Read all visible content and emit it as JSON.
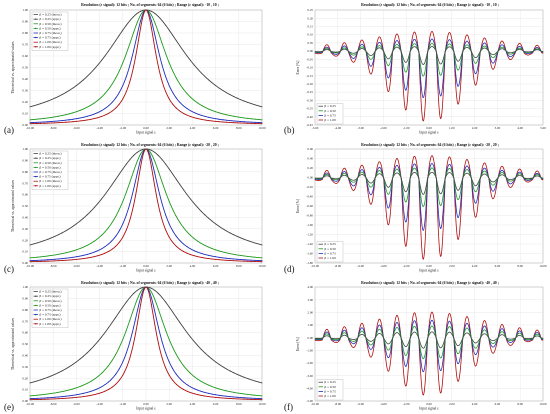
{
  "figure": {
    "panels": [
      {
        "letter": "(a)",
        "title": "Resolution (ε signal): 12 bits ; No. of segments: 64 (6 bits) ; Range (ε signal): -10 , 10 ;"
      },
      {
        "letter": "(b)",
        "title": "Resolution (ε signal): 12 bits ; No. of segments: 64 (6 bits) ; Range (ε signal): -10 , 10 ;"
      },
      {
        "letter": "(c)",
        "title": "Resolution (ε signal): 12 bits ; No. of segments: 64 (6 bits) ; Range (ε signal): -20 , 20 ;"
      },
      {
        "letter": "(d)",
        "title": "Resolution (ε signal): 12 bits ; No. of segments: 64 (6 bits) ; Range (ε signal): -20 , 20 ;"
      },
      {
        "letter": "(e)",
        "title": "Resolution (ε signal): 12 bits ; No. of segments: 64 (6 bits) ; Range (ε signal): -40 , 40 ;"
      },
      {
        "letter": "(f)",
        "title": "Resolution (ε signal): 12 bits ; No. of segments: 64 (6 bits) ; Range (ε signal): -40 , 40 ;"
      }
    ]
  },
  "colors": {
    "b025": "#444444",
    "b050": "#1f9a1f",
    "b075": "#1f2fbf",
    "b100": "#b01010"
  },
  "chart_data": [
    {
      "type": "line",
      "title": "Resolution (ε signal): 12 bits ; No. of segments: 64 (6 bits) ; Range (ε signal): -10 , 10 ;",
      "xlabel": "Input signal ε",
      "ylabel": "Theoretical vs. approximated values",
      "xlim": [
        -10,
        10
      ],
      "ylim": [
        0,
        1
      ],
      "xticks": [
        "-10.00",
        "-8.00",
        "-6.00",
        "-4.00",
        "-2.00",
        "0.00",
        "2.00",
        "4.00",
        "6.00",
        "8.00",
        "10.00"
      ],
      "yticks": [
        "0.00",
        "0.10",
        "0.20",
        "0.30",
        "0.40",
        "0.50",
        "0.60",
        "0.70",
        "0.80",
        "0.90",
        "1.00"
      ],
      "legend": [
        "β = 0.25 (theor.)",
        "β = 0.25 (appr.)",
        "β = 0.50 (theor.)",
        "β = 0.50 (appr.)",
        "β = 0.75 (theor.)",
        "β = 0.75 (appr.)",
        "β = 1.00 (theor.)",
        "β = 1.00 (appr.)"
      ],
      "legend_position": "top-left",
      "series": [
        {
          "name": "β = 0.25",
          "beta": 0.25,
          "color": "#444444"
        },
        {
          "name": "β = 0.50",
          "beta": 0.5,
          "color": "#1f9a1f"
        },
        {
          "name": "β = 0.75",
          "beta": 0.75,
          "color": "#1f2fbf"
        },
        {
          "name": "β = 1.00",
          "beta": 1.0,
          "color": "#b01010"
        }
      ]
    },
    {
      "type": "line",
      "title": "Resolution (ε signal): 12 bits ; No. of segments: 64 (6 bits) ; Range (ε signal): -10 , 10 ;",
      "xlabel": "Input signal ε",
      "ylabel": "Error [%]",
      "xlim": [
        -5,
        5
      ],
      "ylim": [
        -0.45,
        0.25
      ],
      "xticks": [
        "-5.00",
        "-4.00",
        "-3.00",
        "-2.00",
        "-1.00",
        "0.00",
        "1.00",
        "2.00",
        "3.00",
        "4.00",
        "5.00"
      ],
      "yticks": [
        "0.25",
        "0.20",
        "0.15",
        "0.10",
        "0.05",
        "0.00",
        "-0.05",
        "-0.10",
        "-0.15",
        "-0.20",
        "-0.25",
        "-0.30",
        "-0.35",
        "-0.40",
        "-0.45"
      ],
      "legend": [
        "β = 0.25",
        "β = 0.50",
        "β = 0.75",
        "β = 1.00"
      ],
      "legend_position": "bottom-left",
      "series": [
        {
          "name": "β = 0.25",
          "amplitude_pos": 0.03,
          "amplitude_neg": 0.08,
          "color": "#444444"
        },
        {
          "name": "β = 0.50",
          "amplitude_pos": 0.05,
          "amplitude_neg": 0.15,
          "color": "#1f9a1f"
        },
        {
          "name": "β = 0.75",
          "amplitude_pos": 0.08,
          "amplitude_neg": 0.28,
          "color": "#1f2fbf"
        },
        {
          "name": "β = 1.00",
          "amplitude_pos": 0.13,
          "amplitude_neg": 0.42,
          "color": "#b01010"
        }
      ]
    },
    {
      "type": "line",
      "title": "Resolution (ε signal): 12 bits ; No. of segments: 64 (6 bits) ; Range (ε signal): -20 , 20 ;",
      "xlabel": "Input signal ε",
      "ylabel": "Theoretical vs. approximated values",
      "xlim": [
        -10,
        10
      ],
      "ylim": [
        0,
        1
      ],
      "xticks": [
        "-10.00",
        "-8.00",
        "-6.00",
        "-4.00",
        "-2.00",
        "0.00",
        "2.00",
        "4.00",
        "6.00",
        "8.00",
        "10.00"
      ],
      "yticks": [
        "0.00",
        "0.10",
        "0.20",
        "0.30",
        "0.40",
        "0.50",
        "0.60",
        "0.70",
        "0.80",
        "0.90",
        "1.00"
      ],
      "legend": [
        "β = 0.25 (theor.)",
        "β = 0.25 (appr.)",
        "β = 0.50 (theor.)",
        "β = 0.50 (appr.)",
        "β = 0.75 (theor.)",
        "β = 0.75 (appr.)",
        "β = 1.00 (theor.)",
        "β = 1.00 (appr.)"
      ],
      "legend_position": "top-left",
      "series": [
        {
          "name": "β = 0.25",
          "beta": 0.25,
          "color": "#444444"
        },
        {
          "name": "β = 0.50",
          "beta": 0.5,
          "color": "#1f9a1f"
        },
        {
          "name": "β = 0.75",
          "beta": 0.75,
          "color": "#1f2fbf"
        },
        {
          "name": "β = 1.00",
          "beta": 1.0,
          "color": "#b01010"
        }
      ]
    },
    {
      "type": "line",
      "title": "Resolution (ε signal): 12 bits ; No. of segments: 64 (6 bits) ; Range (ε signal): -20 , 20 ;",
      "xlabel": "Input signal ε",
      "ylabel": "Error [%]",
      "xlim": [
        -10,
        10
      ],
      "ylim": [
        -1.8,
        0.6
      ],
      "xticks": [
        "-10.00",
        "-8.00",
        "-6.00",
        "-4.00",
        "-2.00",
        "0.00",
        "2.00",
        "4.00",
        "6.00",
        "8.00",
        "10.00"
      ],
      "yticks": [
        "0.60",
        "0.40",
        "0.20",
        "0.00",
        "-0.20",
        "-0.40",
        "-0.60",
        "-0.80",
        "-1.00",
        "-1.20",
        "-1.40",
        "-1.60",
        "-1.80"
      ],
      "legend": [
        "β = 0.25",
        "β = 0.50",
        "β = 0.75",
        "β = 1.00"
      ],
      "legend_position": "bottom-left",
      "series": [
        {
          "name": "β = 0.25",
          "amplitude_pos": 0.12,
          "amplitude_neg": 0.35,
          "color": "#444444"
        },
        {
          "name": "β = 0.50",
          "amplitude_pos": 0.22,
          "amplitude_neg": 0.6,
          "color": "#1f9a1f"
        },
        {
          "name": "β = 0.75",
          "amplitude_pos": 0.32,
          "amplitude_neg": 1.1,
          "color": "#1f2fbf"
        },
        {
          "name": "β = 1.00",
          "amplitude_pos": 0.5,
          "amplitude_neg": 1.7,
          "color": "#b01010"
        }
      ]
    },
    {
      "type": "line",
      "title": "Resolution (ε signal): 12 bits ; No. of segments: 64 (6 bits) ; Range (ε signal): -40 , 40 ;",
      "xlabel": "Input signal ε",
      "ylabel": "Theoretical vs. approximated values",
      "xlim": [
        -10,
        10
      ],
      "ylim": [
        0,
        1
      ],
      "xticks": [
        "-10.00",
        "-8.00",
        "-6.00",
        "-4.00",
        "-2.00",
        "0.00",
        "2.00",
        "4.00",
        "6.00",
        "8.00",
        "10.00"
      ],
      "yticks": [
        "0.00",
        "0.10",
        "0.20",
        "0.30",
        "0.40",
        "0.50",
        "0.60",
        "0.70",
        "0.80",
        "0.90",
        "1.00"
      ],
      "legend": [
        "β = 0.25 (theor.)",
        "β = 0.25 (appr.)",
        "β = 0.50 (theor.)",
        "β = 0.50 (appr.)",
        "β = 0.75 (theor.)",
        "β = 0.75 (appr.)",
        "β = 1.00 (theor.)",
        "β = 1.00 (appr.)"
      ],
      "legend_position": "top-left",
      "series": [
        {
          "name": "β = 0.25",
          "beta": 0.25,
          "color": "#444444"
        },
        {
          "name": "β = 0.50",
          "beta": 0.5,
          "color": "#1f9a1f"
        },
        {
          "name": "β = 0.75",
          "beta": 0.75,
          "color": "#1f2fbf"
        },
        {
          "name": "β = 1.00",
          "beta": 1.0,
          "color": "#b01010"
        }
      ]
    },
    {
      "type": "line",
      "title": "Resolution (ε signal): 12 bits ; No. of segments: 64 (6 bits) ; Range (ε signal): -40 , 40 ;",
      "xlabel": "Input signal ε",
      "ylabel": "Error [%]",
      "xlim": [
        -10,
        10
      ],
      "ylim": [
        -5,
        4
      ],
      "xticks": [
        "-10.00",
        "-8.00",
        "-6.00",
        "-4.00",
        "-2.00",
        "0.00",
        "2.00",
        "4.00",
        "6.00",
        "8.00",
        "10.00"
      ],
      "yticks": [
        "4.00",
        "3.00",
        "2.00",
        "1.00",
        "0.00",
        "-1.00",
        "-2.00",
        "-3.00",
        "-4.00",
        "-5.00"
      ],
      "legend": [
        "β = 0.25",
        "β = 0.50",
        "β = 0.75",
        "β = 1.00"
      ],
      "legend_position": "bottom-left",
      "series": [
        {
          "name": "β = 0.25",
          "amplitude_pos": 0.5,
          "amplitude_neg": 0.8,
          "color": "#444444"
        },
        {
          "name": "β = 0.50",
          "amplitude_pos": 1.0,
          "amplitude_neg": 1.6,
          "color": "#1f9a1f"
        },
        {
          "name": "β = 0.75",
          "amplitude_pos": 1.5,
          "amplitude_neg": 2.6,
          "color": "#1f2fbf"
        },
        {
          "name": "β = 1.00",
          "amplitude_pos": 2.2,
          "amplitude_neg": 4.4,
          "color": "#b01010"
        }
      ]
    }
  ]
}
